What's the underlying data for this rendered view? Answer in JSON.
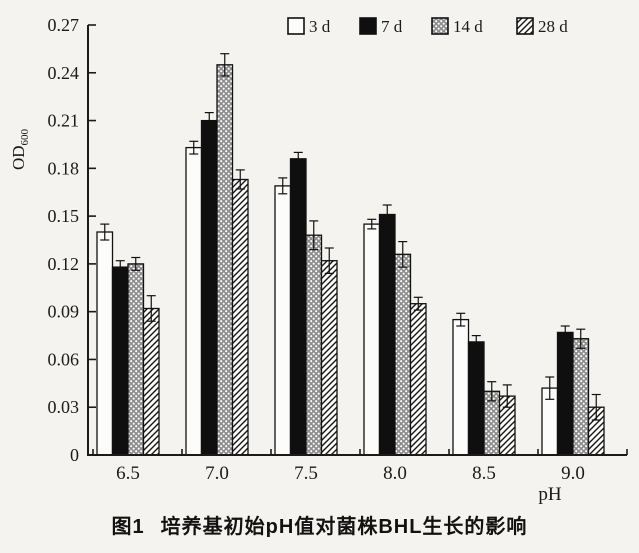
{
  "figure": {
    "caption_label": "图1",
    "caption_title": "培养基初始pH值对菌株BHL生长的影响",
    "x_axis_title": "pH",
    "y_axis_title_main": "OD",
    "y_axis_title_sub": "600"
  },
  "chart_data": {
    "type": "bar",
    "title": "",
    "xlabel": "pH",
    "ylabel": "OD600",
    "ylim": [
      0,
      0.27
    ],
    "grid": false,
    "legend_position": "top",
    "error_bars": true,
    "y_ticks": [
      0,
      0.03,
      0.06,
      0.09,
      0.12,
      0.15,
      0.18,
      0.21,
      0.24,
      0.27
    ],
    "y_tick_labels": [
      "0",
      "0.03",
      "0.06",
      "0.09",
      "0.12",
      "0.15",
      "0.18",
      "0.21",
      "0.24",
      "0.27"
    ],
    "categories": [
      "6.5",
      "7.0",
      "7.5",
      "8.0",
      "8.5",
      "9.0"
    ],
    "series": [
      {
        "name": "3 d",
        "style": "white",
        "values": [
          0.14,
          0.193,
          0.169,
          0.145,
          0.085,
          0.042
        ],
        "errors": [
          0.005,
          0.004,
          0.005,
          0.003,
          0.004,
          0.007
        ]
      },
      {
        "name": "7 d",
        "style": "black",
        "values": [
          0.118,
          0.21,
          0.186,
          0.151,
          0.071,
          0.077
        ],
        "errors": [
          0.004,
          0.005,
          0.004,
          0.006,
          0.004,
          0.004
        ]
      },
      {
        "name": "14 d",
        "style": "dots",
        "values": [
          0.12,
          0.245,
          0.138,
          0.126,
          0.04,
          0.073
        ],
        "errors": [
          0.004,
          0.007,
          0.009,
          0.008,
          0.006,
          0.006
        ]
      },
      {
        "name": "28 d",
        "style": "hatch",
        "values": [
          0.092,
          0.173,
          0.122,
          0.095,
          0.037,
          0.03
        ],
        "errors": [
          0.008,
          0.006,
          0.008,
          0.004,
          0.007,
          0.008
        ]
      }
    ],
    "colors": {
      "axis": "#1a1a1a",
      "bar_outline": "#111111",
      "black_fill": "#0f0f0f",
      "white_fill": "#fcfcfa",
      "dots_base": "#8d8d8d",
      "hatch_line": "#161616",
      "background": "#f4f3f0"
    }
  }
}
